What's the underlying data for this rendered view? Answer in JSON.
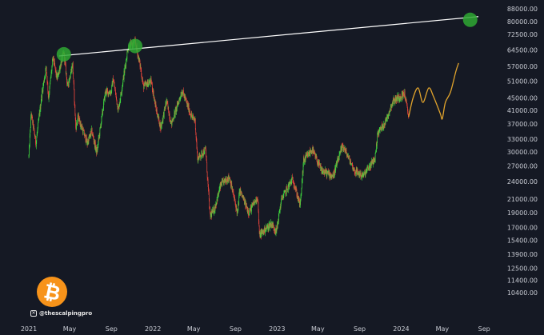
{
  "chart_data": {
    "type": "candlestick",
    "y_scale": "log",
    "ylim": [
      10400,
      88000
    ],
    "y_ticks": [
      "88000.00",
      "80000.00",
      "72500.00",
      "64500.00",
      "57000.00",
      "51000.00",
      "45000.00",
      "41000.00",
      "37000.00",
      "33000.00",
      "30000.00",
      "27000.00",
      "24000.00",
      "21000.00",
      "19000.00",
      "17000.00",
      "15400.00",
      "13900.00",
      "12500.00",
      "11400.00",
      "10400.00"
    ],
    "x_ticks": [
      "2021",
      "May",
      "Sep",
      "2022",
      "May",
      "Sep",
      "2023",
      "May",
      "Sep",
      "2024",
      "May",
      "Sep"
    ],
    "x_range": [
      "2021-01-01",
      "2024-10-20"
    ],
    "grid": false,
    "colors": {
      "background": "#151924",
      "up": "#3fd83f",
      "down": "#e8453c",
      "projection": "#e0a32c",
      "trendline": "#ffffff",
      "marker": "#2ea832"
    },
    "price_path": [
      [
        "2021-01-01",
        29000
      ],
      [
        "2021-01-08",
        40000
      ],
      [
        "2021-01-22",
        32000
      ],
      [
        "2021-02-08",
        46000
      ],
      [
        "2021-02-21",
        57000
      ],
      [
        "2021-02-28",
        45000
      ],
      [
        "2021-03-13",
        61000
      ],
      [
        "2021-03-25",
        52000
      ],
      [
        "2021-04-14",
        63500
      ],
      [
        "2021-04-25",
        49000
      ],
      [
        "2021-05-10",
        58000
      ],
      [
        "2021-05-19",
        36000
      ],
      [
        "2021-05-26",
        39000
      ],
      [
        "2021-06-22",
        32000
      ],
      [
        "2021-07-05",
        35000
      ],
      [
        "2021-07-20",
        29800
      ],
      [
        "2021-08-14",
        47000
      ],
      [
        "2021-08-31",
        47000
      ],
      [
        "2021-09-06",
        52000
      ],
      [
        "2021-09-21",
        41000
      ],
      [
        "2021-10-01",
        48000
      ],
      [
        "2021-10-20",
        66000
      ],
      [
        "2021-11-10",
        68500
      ],
      [
        "2021-11-25",
        57000
      ],
      [
        "2021-12-04",
        49000
      ],
      [
        "2021-12-27",
        51000
      ],
      [
        "2022-01-10",
        41500
      ],
      [
        "2022-01-24",
        36000
      ],
      [
        "2022-02-10",
        44000
      ],
      [
        "2022-02-24",
        37000
      ],
      [
        "2022-03-28",
        47500
      ],
      [
        "2022-04-25",
        39000
      ],
      [
        "2022-05-05",
        38000
      ],
      [
        "2022-05-12",
        28500
      ],
      [
        "2022-06-05",
        30500
      ],
      [
        "2022-06-18",
        18500
      ],
      [
        "2022-07-01",
        19500
      ],
      [
        "2022-07-20",
        23500
      ],
      [
        "2022-08-14",
        24800
      ],
      [
        "2022-09-07",
        18800
      ],
      [
        "2022-09-13",
        22500
      ],
      [
        "2022-10-10",
        19000
      ],
      [
        "2022-11-05",
        21400
      ],
      [
        "2022-11-10",
        16000
      ],
      [
        "2022-12-15",
        17500
      ],
      [
        "2022-12-30",
        16500
      ],
      [
        "2023-01-14",
        21000
      ],
      [
        "2023-02-16",
        24500
      ],
      [
        "2023-03-10",
        20000
      ],
      [
        "2023-03-20",
        28000
      ],
      [
        "2023-04-14",
        30500
      ],
      [
        "2023-05-12",
        26000
      ],
      [
        "2023-06-15",
        25000
      ],
      [
        "2023-07-13",
        31500
      ],
      [
        "2023-08-17",
        26000
      ],
      [
        "2023-09-11",
        25000
      ],
      [
        "2023-10-16",
        28500
      ],
      [
        "2023-10-24",
        34500
      ],
      [
        "2023-11-15",
        37500
      ],
      [
        "2023-12-08",
        44000
      ],
      [
        "2024-01-11",
        46500
      ],
      [
        "2024-01-23",
        39000
      ]
    ],
    "projection_path": [
      [
        "2024-01-23",
        39000
      ],
      [
        "2024-02-05",
        45000
      ],
      [
        "2024-02-20",
        48500
      ],
      [
        "2024-03-05",
        43500
      ],
      [
        "2024-03-22",
        48500
      ],
      [
        "2024-04-05",
        45500
      ],
      [
        "2024-04-25",
        40000
      ],
      [
        "2024-05-01",
        38500
      ],
      [
        "2024-05-10",
        43500
      ],
      [
        "2024-05-25",
        47000
      ],
      [
        "2024-06-10",
        55000
      ],
      [
        "2024-06-18",
        58500
      ]
    ],
    "trendline": [
      [
        "2021-04-14",
        62000
      ],
      [
        "2024-08-15",
        83000
      ]
    ],
    "markers": [
      {
        "date": "2021-04-14",
        "price": 62500
      },
      {
        "date": "2021-11-10",
        "price": 66500
      },
      {
        "date": "2024-07-22",
        "price": 81000
      }
    ]
  },
  "watermark": {
    "icon": "x-logo-icon",
    "handle": "@thescalpingpro"
  },
  "logo": {
    "icon": "bitcoin-icon",
    "glyph": "₿"
  }
}
